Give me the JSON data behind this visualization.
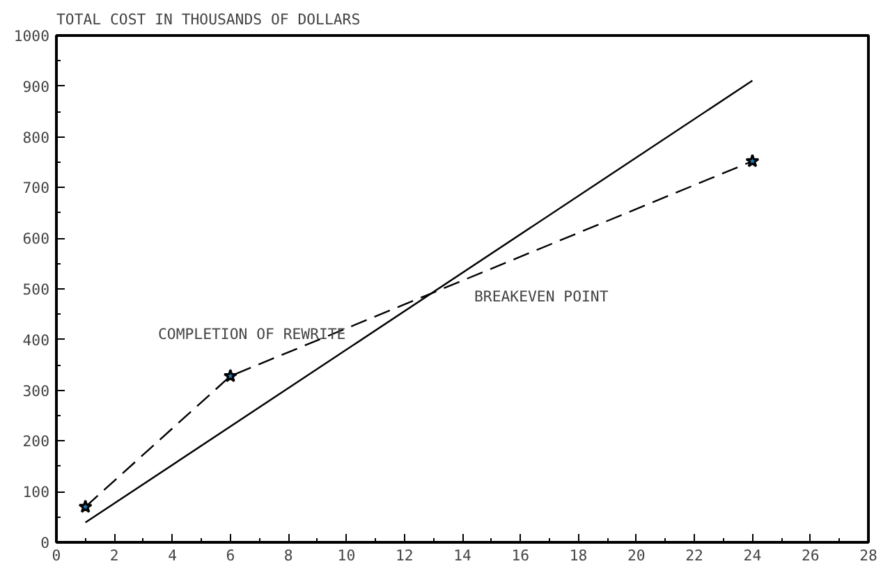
{
  "chart_data": {
    "type": "line",
    "ylabel": "TOTAL COST IN THOUSANDS OF DOLLARS",
    "xlim": [
      0,
      28
    ],
    "xticks": [
      0,
      2,
      4,
      6,
      8,
      10,
      12,
      14,
      16,
      18,
      20,
      22,
      24,
      26,
      28
    ],
    "ylim": [
      0,
      1000
    ],
    "yticks": [
      0,
      100,
      200,
      300,
      400,
      500,
      600,
      700,
      800,
      900,
      1000
    ],
    "grid": false,
    "series": [
      {
        "x": [
          1,
          24
        ],
        "values": [
          39,
          911
        ],
        "color": "#000000",
        "line_style": "solid",
        "marker": "none"
      },
      {
        "x": [
          1,
          6,
          24
        ],
        "values": [
          70,
          328,
          752
        ],
        "color": "#000000",
        "line_style": "dashed",
        "marker": "star"
      }
    ],
    "annotations": [
      "COMPLETION OF REWRITE",
      "BREAKEVEN POINT"
    ]
  }
}
